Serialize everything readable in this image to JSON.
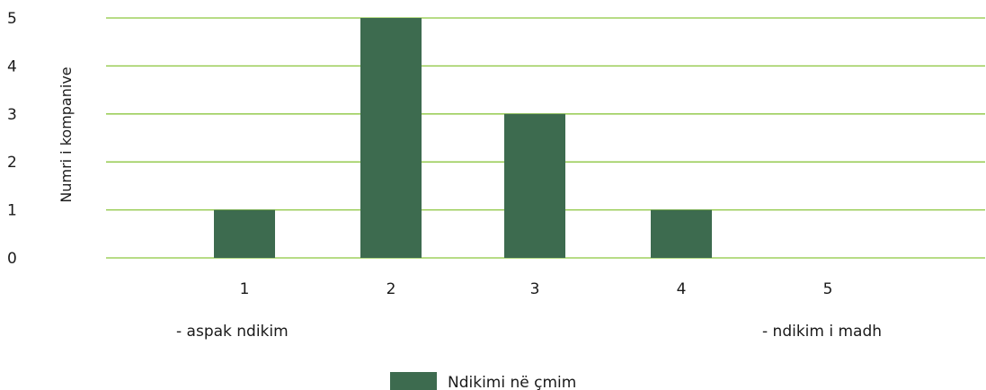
{
  "chart_data": {
    "type": "bar",
    "categories": [
      "1",
      "2",
      "3",
      "4",
      "5"
    ],
    "series": [
      {
        "name": "Ndikimi në çmim",
        "values": [
          1,
          5,
          3,
          1,
          0
        ]
      }
    ],
    "ylabel": "Numri i kompanive",
    "xlabel": "",
    "ylim": [
      0,
      5
    ],
    "yticks": [
      "0",
      "1",
      "2",
      "3",
      "4",
      "5"
    ],
    "scale_notes": {
      "low": "- aspak ndikim",
      "high": "- ndikim i madh"
    },
    "grid": true,
    "legend_position": "bottom",
    "colors": {
      "bar": "#3d6b4f",
      "grid": "#8cc63f"
    }
  }
}
